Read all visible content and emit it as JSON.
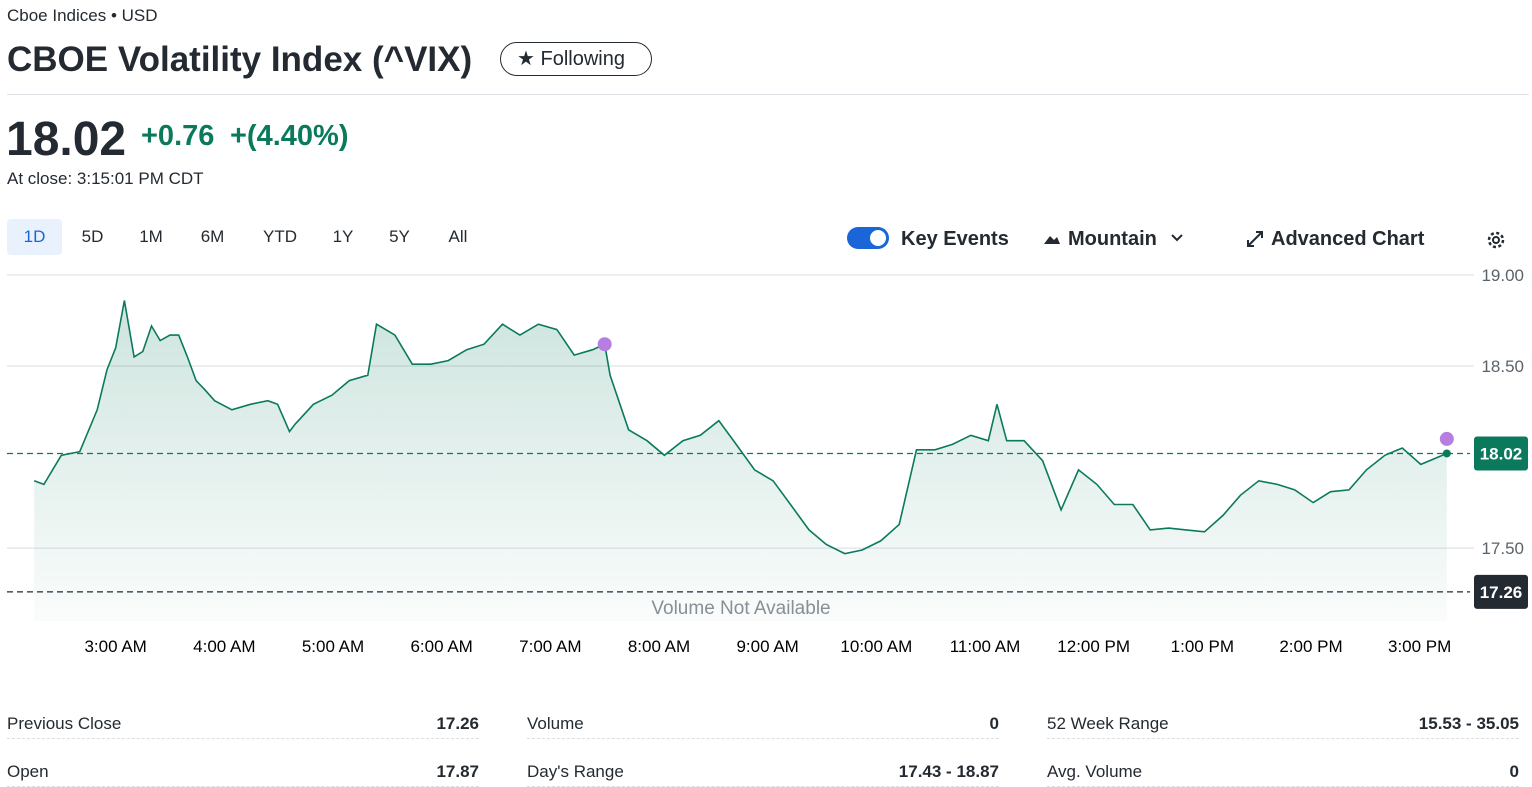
{
  "header": {
    "exchange": "Cboe Indices • USD",
    "title": "CBOE Volatility Index (^VIX)",
    "follow_button": "Following"
  },
  "quote": {
    "price": "18.02",
    "change": "+0.76",
    "change_percent": "+(4.40%)",
    "close_time": "At close: 3:15:01 PM CDT"
  },
  "range_tabs": [
    "1D",
    "5D",
    "1M",
    "6M",
    "YTD",
    "1Y",
    "5Y",
    "All"
  ],
  "toolbar": {
    "key_events": "Key Events",
    "chart_style": "Mountain",
    "advanced_chart": "Advanced Chart"
  },
  "chart_data": {
    "type": "line",
    "color": "#0b7a5c",
    "grid": true,
    "annotation": "Volume Not Available",
    "x": [
      2.25,
      2.34,
      2.5,
      2.67,
      2.83,
      2.92,
      3.0,
      3.08,
      3.17,
      3.25,
      3.33,
      3.41,
      3.5,
      3.58,
      3.66,
      3.74,
      3.82,
      3.91,
      4.07,
      4.24,
      4.4,
      4.49,
      4.6,
      4.65,
      4.82,
      4.99,
      5.15,
      5.32,
      5.4,
      5.57,
      5.73,
      5.9,
      6.06,
      6.23,
      6.39,
      6.56,
      6.72,
      6.89,
      7.06,
      7.22,
      7.39,
      7.5,
      7.55,
      7.72,
      7.89,
      8.05,
      8.22,
      8.38,
      8.55,
      8.71,
      8.88,
      9.05,
      9.21,
      9.38,
      9.54,
      9.71,
      9.87,
      10.04,
      10.21,
      10.37,
      10.54,
      10.7,
      10.87,
      11.03,
      11.11,
      11.2,
      11.36,
      11.53,
      11.7,
      11.86,
      12.03,
      12.19,
      12.36,
      12.52,
      12.69,
      12.85,
      13.02,
      13.19,
      13.35,
      13.52,
      13.69,
      13.85,
      14.02,
      14.18,
      14.35,
      14.51,
      14.68,
      14.84,
      15.01,
      15.17,
      15.25
    ],
    "values": [
      17.87,
      17.85,
      18.01,
      18.03,
      18.26,
      18.48,
      18.6,
      18.86,
      18.55,
      18.58,
      18.72,
      18.64,
      18.67,
      18.67,
      18.55,
      18.42,
      18.37,
      18.31,
      18.26,
      18.29,
      18.31,
      18.29,
      18.14,
      18.18,
      18.29,
      18.34,
      18.42,
      18.45,
      18.73,
      18.67,
      18.51,
      18.51,
      18.53,
      18.59,
      18.62,
      18.73,
      18.67,
      18.73,
      18.7,
      18.56,
      18.59,
      18.62,
      18.45,
      18.15,
      18.09,
      18.01,
      18.09,
      18.12,
      18.2,
      18.07,
      17.93,
      17.87,
      17.74,
      17.6,
      17.52,
      17.47,
      17.49,
      17.54,
      17.63,
      18.04,
      18.04,
      18.07,
      18.12,
      18.09,
      18.29,
      18.09,
      18.09,
      17.98,
      17.71,
      17.93,
      17.85,
      17.74,
      17.74,
      17.6,
      17.61,
      17.6,
      17.59,
      17.68,
      17.79,
      17.87,
      17.85,
      17.82,
      17.75,
      17.81,
      17.82,
      17.93,
      18.01,
      18.05,
      17.96,
      18.0,
      18.02
    ],
    "xlim": [
      2,
      15.5
    ],
    "ylim": [
      17.1,
      19.0
    ],
    "xticks": [
      {
        "value": 3,
        "label": "3:00 AM"
      },
      {
        "value": 4,
        "label": "4:00 AM"
      },
      {
        "value": 5,
        "label": "5:00 AM"
      },
      {
        "value": 6,
        "label": "6:00 AM"
      },
      {
        "value": 7,
        "label": "7:00 AM"
      },
      {
        "value": 8,
        "label": "8:00 AM"
      },
      {
        "value": 9,
        "label": "9:00 AM"
      },
      {
        "value": 10,
        "label": "10:00 AM"
      },
      {
        "value": 11,
        "label": "11:00 AM"
      },
      {
        "value": 12,
        "label": "12:00 PM"
      },
      {
        "value": 13,
        "label": "1:00 PM"
      },
      {
        "value": 14,
        "label": "2:00 PM"
      },
      {
        "value": 15,
        "label": "3:00 PM"
      }
    ],
    "yticks": [
      {
        "value": 17.5,
        "label": "17.50"
      },
      {
        "value": 18.5,
        "label": "18.50"
      },
      {
        "value": 19,
        "label": "19.00"
      }
    ],
    "reference_lines": [
      {
        "value": 18.02,
        "color": "#0b7a5c"
      },
      {
        "value": 17.26,
        "color": "#232a31"
      }
    ],
    "events": [
      {
        "x": 7.5,
        "y": 18.62
      },
      {
        "x": 15.25,
        "y": 18.1
      }
    ]
  },
  "stats": [
    [
      {
        "label": "Previous Close",
        "value": "17.26"
      },
      {
        "label": "Open",
        "value": "17.87"
      }
    ],
    [
      {
        "label": "Volume",
        "value": "0"
      },
      {
        "label": "Day's Range",
        "value": "17.43 - 18.87"
      }
    ],
    [
      {
        "label": "52 Week Range",
        "value": "15.53 - 35.05"
      },
      {
        "label": "Avg. Volume",
        "value": "0"
      }
    ]
  ]
}
